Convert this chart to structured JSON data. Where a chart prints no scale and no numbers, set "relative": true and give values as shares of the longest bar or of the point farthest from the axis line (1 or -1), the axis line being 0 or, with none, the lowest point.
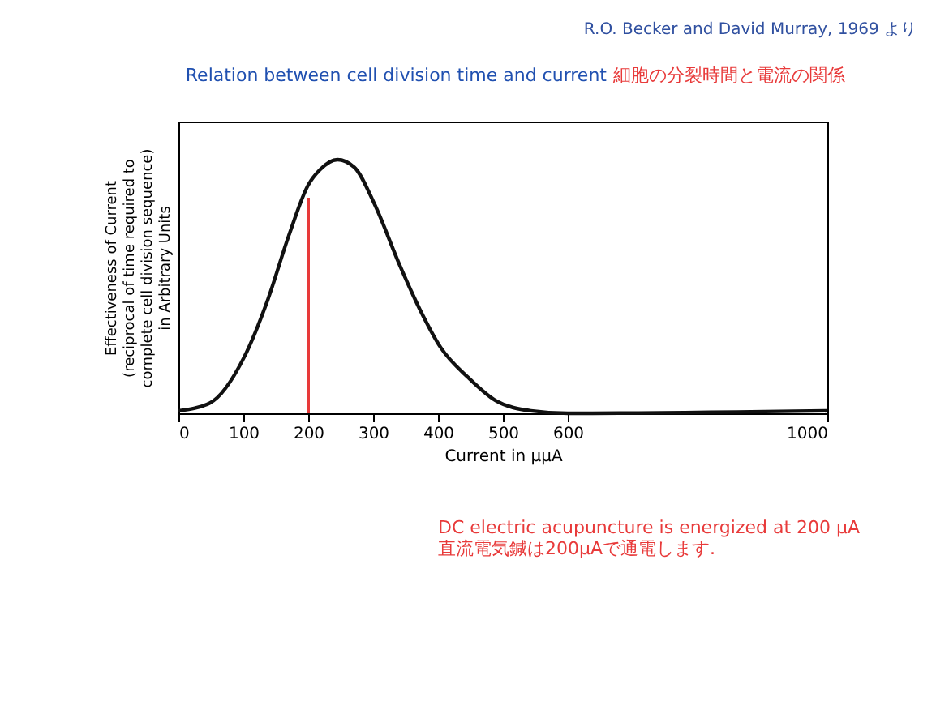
{
  "chart_data": {
    "type": "line",
    "relative": true,
    "title": "Relation between cell division time and current",
    "subtitle": "細胞の分裂時間と電流の関係",
    "xlabel": "Current in μμA",
    "ylabel": "Effectiveness of Current\n(reciprocal of time required to\ncomplete cell division sequence)\nin Arbitrary Units",
    "x": [
      0,
      48,
      101,
      138,
      170,
      200,
      218,
      245,
      271,
      303,
      340,
      372,
      404,
      447,
      489,
      543,
      600,
      1000
    ],
    "values": [
      0.01,
      0.04,
      0.22,
      0.45,
      0.7,
      0.9,
      0.96,
      1,
      0.97,
      0.82,
      0.59,
      0.41,
      0.26,
      0.14,
      0.05,
      0.01,
      0.0,
      0.01
    ],
    "color": "#111111",
    "xlim": [
      0,
      1000
    ],
    "xticks": [
      0,
      100,
      200,
      300,
      400,
      500,
      600,
      1000
    ],
    "tick_labels": "x",
    "grid": false,
    "marker": "none",
    "line_style": "solid",
    "ref_lines": [
      {
        "axis": "x",
        "value": 200,
        "color": "#e83a3a"
      }
    ],
    "annotations": [
      "R.O. Becker and David Murray, 1969 より",
      "DC electric acupuncture is energized at 200 μA\n直流電気鍼は200μAで通電します."
    ]
  }
}
